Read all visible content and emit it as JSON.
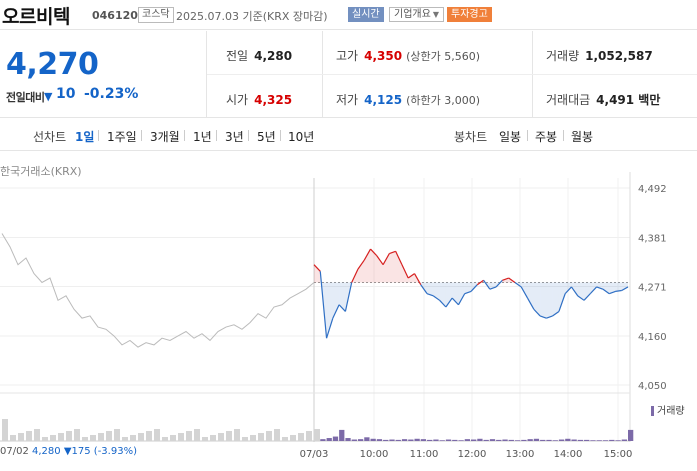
{
  "header": {
    "name": "오르비텍",
    "code": "046120",
    "market": "코스닥",
    "date": "2025.07.03 기준(KRX 장마감)",
    "realtime": "실시간",
    "corp_info": "기업개요",
    "warning": "투자경고"
  },
  "summary": {
    "price": "4,270",
    "change_label": "전일대비",
    "change_arrow": "▼",
    "change_value": "10",
    "change_pct": "-0.23%",
    "prev_label": "전일",
    "prev_value": "4,280",
    "high_label": "고가",
    "high_value": "4,350",
    "upper_limit": "(상한가 5,560)",
    "volume_label": "거래량",
    "volume_value": "1,052,587",
    "open_label": "시가",
    "open_value": "4,325",
    "low_label": "저가",
    "low_value": "4,125",
    "lower_limit": "(하한가 3,000)",
    "amount_label": "거래대금",
    "amount_value": "4,491 백만"
  },
  "tabs": {
    "line_title": "선차트",
    "line_items": [
      "1일",
      "1주일",
      "3개월",
      "1년",
      "3년",
      "5년",
      "10년"
    ],
    "active": "1일",
    "candle_title": "봉차트",
    "candle_items": [
      "일봉",
      "주봉",
      "월봉"
    ]
  },
  "chart": {
    "source": "한국거래소(KRX)",
    "volume_legend": "거래량",
    "footer_date": "07/02",
    "footer_price": "4,280",
    "footer_change": "▼175 (-3.93%)",
    "colors": {
      "up": "#d62020",
      "down": "#2f6fc4",
      "prev": "#bbbbbb",
      "volume": "#7c6aa8"
    }
  },
  "chart_data": {
    "type": "line",
    "title": "",
    "xlabel": "",
    "ylabel": "",
    "ylim": [
      4050,
      4492
    ],
    "y_ticks": [
      "4,492",
      "4,381",
      "4,271",
      "4,160",
      "4,050"
    ],
    "x_ticks": [
      "07/03",
      "10:00",
      "11:00",
      "12:00",
      "13:00",
      "14:00",
      "15:00"
    ],
    "reference_price": 4280,
    "previous_day_series": [
      4390,
      4360,
      4320,
      4335,
      4300,
      4280,
      4290,
      4240,
      4250,
      4220,
      4200,
      4205,
      4180,
      4175,
      4160,
      4140,
      4150,
      4135,
      4145,
      4140,
      4155,
      4150,
      4160,
      4170,
      4155,
      4165,
      4150,
      4170,
      4180,
      4185,
      4175,
      4190,
      4210,
      4200,
      4225,
      4230,
      4245,
      4255,
      4265,
      4280
    ],
    "series": [
      {
        "values": [
          4320,
          4305,
          4155,
          4200,
          4230,
          4215,
          4280,
          4310,
          4330,
          4355,
          4340,
          4320,
          4345,
          4350,
          4320,
          4290,
          4300,
          4275,
          4255,
          4250,
          4240,
          4225,
          4245,
          4230,
          4255,
          4260,
          4275,
          4285,
          4265,
          4270,
          4285,
          4290,
          4280,
          4270,
          4245,
          4220,
          4205,
          4200,
          4205,
          4215,
          4255,
          4270,
          4250,
          4240,
          4255,
          4270,
          4265,
          4255,
          4260,
          4262,
          4270
        ]
      }
    ],
    "volume_relative": [
      0.2,
      0.05,
      0.08,
      0.12,
      0.3,
      0.08,
      0.04,
      0.05,
      0.1,
      0.06,
      0.05,
      0.03,
      0.04,
      0.03,
      0.05,
      0.04,
      0.06,
      0.05,
      0.03,
      0.04,
      0.02,
      0.04,
      0.03,
      0.02,
      0.05,
      0.04,
      0.06,
      0.03,
      0.05,
      0.03,
      0.04,
      0.03,
      0.02,
      0.03,
      0.05,
      0.06,
      0.03,
      0.03,
      0.02,
      0.04,
      0.06,
      0.04,
      0.03,
      0.03,
      0.02,
      0.02,
      0.02,
      0.03,
      0.02,
      0.04,
      0.3
    ]
  }
}
